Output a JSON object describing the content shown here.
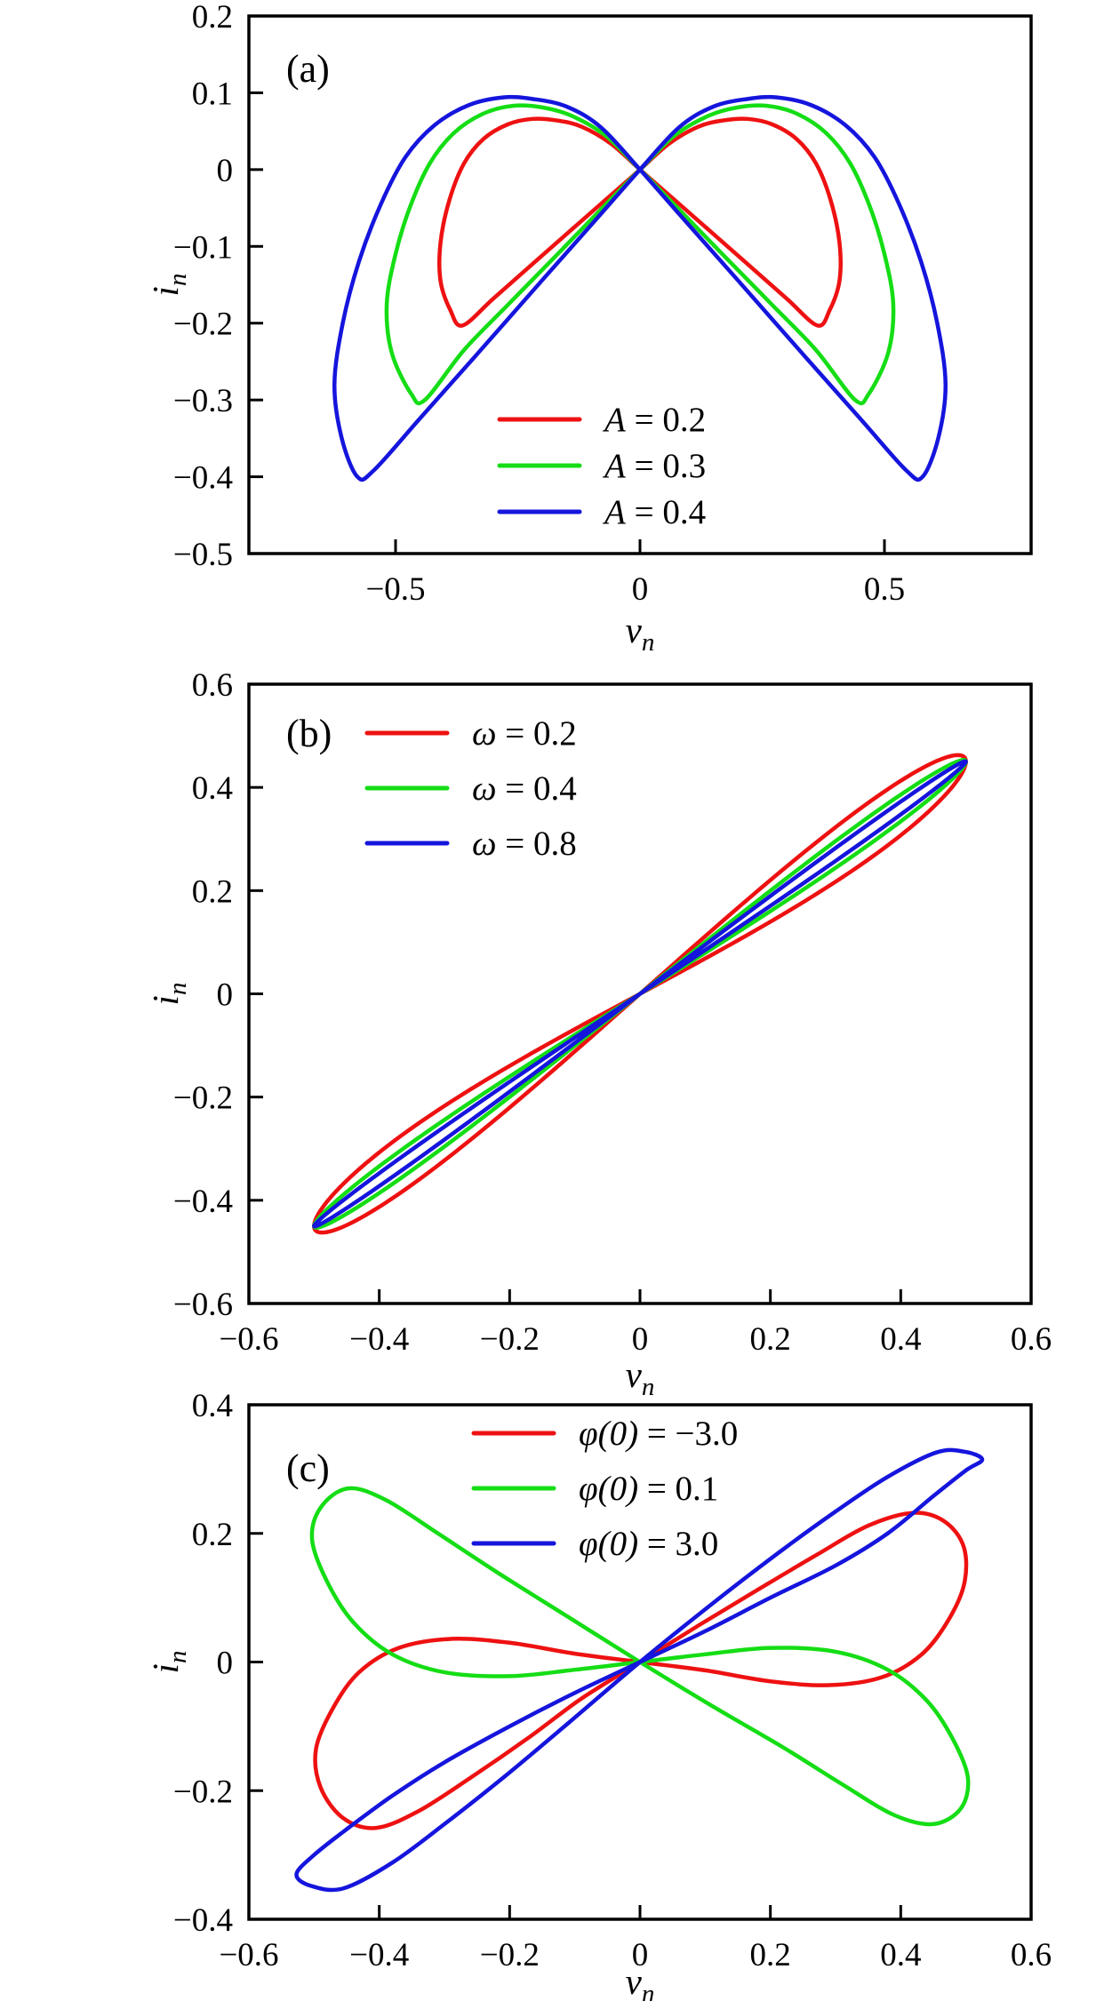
{
  "figure": {
    "background": "#ffffff",
    "frame_color": "#000000",
    "description": "Pinched hysteresis loops of i_n versus v_n, three stacked panels"
  },
  "chart_data": [
    {
      "type": "line",
      "tag": "(a)",
      "xlabel": {
        "base": "v",
        "sub": "n"
      },
      "ylabel": {
        "base": "i",
        "sub": "n"
      },
      "xlim": [
        -0.8,
        0.8
      ],
      "ylim": [
        -0.5,
        0.2
      ],
      "grid": false,
      "xticks": [
        {
          "v": -0.5,
          "label": "−0.5"
        },
        {
          "v": 0,
          "label": "0"
        },
        {
          "v": 0.5,
          "label": "0.5"
        }
      ],
      "yticks": [
        {
          "v": 0.2,
          "label": "0.2"
        },
        {
          "v": 0.1,
          "label": "0.1"
        },
        {
          "v": 0,
          "label": "0"
        },
        {
          "v": -0.1,
          "label": "−0.1"
        },
        {
          "v": -0.2,
          "label": "−0.2"
        },
        {
          "v": -0.3,
          "label": "−0.3"
        },
        {
          "v": -0.4,
          "label": "−0.4"
        },
        {
          "v": -0.5,
          "label": "−0.5"
        }
      ],
      "legend_position": "lower center",
      "legend": [
        {
          "math": "A",
          "rest": " = 0.2",
          "color": "#ee1111"
        },
        {
          "math": "A",
          "rest": " = 0.3",
          "color": "#15dd15"
        },
        {
          "math": "A",
          "rest": " = 0.4",
          "color": "#1515dd"
        }
      ],
      "series": [
        {
          "name": "A = 0.2",
          "color": "#ee1111",
          "geometry": "mirror-wing",
          "wing_points": [
            [
              0,
              0
            ],
            [
              0.06,
              0.034
            ],
            [
              0.12,
              0.056
            ],
            [
              0.17,
              0.064
            ],
            [
              0.22,
              0.066
            ],
            [
              0.27,
              0.059
            ],
            [
              0.32,
              0.04
            ],
            [
              0.36,
              0.008
            ],
            [
              0.39,
              -0.04
            ],
            [
              0.408,
              -0.095
            ],
            [
              0.408,
              -0.145
            ],
            [
              0.388,
              -0.183
            ],
            [
              0.363,
              -0.203
            ],
            [
              0.3,
              -0.168
            ],
            [
              0.22,
              -0.123
            ],
            [
              0.12,
              -0.067
            ],
            [
              0.05,
              -0.028
            ]
          ]
        },
        {
          "name": "A = 0.3",
          "color": "#15dd15",
          "geometry": "mirror-wing",
          "wing_points": [
            [
              0,
              0
            ],
            [
              0.07,
              0.044
            ],
            [
              0.14,
              0.07
            ],
            [
              0.2,
              0.081
            ],
            [
              0.26,
              0.083
            ],
            [
              0.32,
              0.073
            ],
            [
              0.38,
              0.048
            ],
            [
              0.43,
              0.008
            ],
            [
              0.47,
              -0.048
            ],
            [
              0.5,
              -0.11
            ],
            [
              0.518,
              -0.175
            ],
            [
              0.508,
              -0.238
            ],
            [
              0.468,
              -0.292
            ],
            [
              0.44,
              -0.3
            ],
            [
              0.36,
              -0.235
            ],
            [
              0.27,
              -0.176
            ],
            [
              0.17,
              -0.111
            ],
            [
              0.08,
              -0.052
            ]
          ]
        },
        {
          "name": "A = 0.4",
          "color": "#1515dd",
          "geometry": "mirror-wing",
          "wing_points": [
            [
              0,
              0
            ],
            [
              0.08,
              0.055
            ],
            [
              0.15,
              0.082
            ],
            [
              0.22,
              0.092
            ],
            [
              0.28,
              0.094
            ],
            [
              0.35,
              0.084
            ],
            [
              0.42,
              0.058
            ],
            [
              0.48,
              0.016
            ],
            [
              0.53,
              -0.045
            ],
            [
              0.575,
              -0.12
            ],
            [
              0.608,
              -0.2
            ],
            [
              0.625,
              -0.28
            ],
            [
              0.61,
              -0.35
            ],
            [
              0.578,
              -0.4
            ],
            [
              0.545,
              -0.392
            ],
            [
              0.45,
              -0.324
            ],
            [
              0.33,
              -0.238
            ],
            [
              0.2,
              -0.144
            ],
            [
              0.09,
              -0.065
            ]
          ]
        }
      ]
    },
    {
      "type": "line",
      "tag": "(b)",
      "xlabel": {
        "base": "v",
        "sub": "n"
      },
      "ylabel": {
        "base": "i",
        "sub": "n"
      },
      "xlim": [
        -0.6,
        0.6
      ],
      "ylim": [
        -0.6,
        0.6
      ],
      "grid": false,
      "xticks": [
        {
          "v": -0.6,
          "label": "−0.6"
        },
        {
          "v": -0.4,
          "label": "−0.4"
        },
        {
          "v": -0.2,
          "label": "−0.2"
        },
        {
          "v": 0,
          "label": "0"
        },
        {
          "v": 0.2,
          "label": "0.2"
        },
        {
          "v": 0.4,
          "label": "0.4"
        },
        {
          "v": 0.6,
          "label": "0.6"
        }
      ],
      "yticks": [
        {
          "v": 0.6,
          "label": "0.6"
        },
        {
          "v": 0.4,
          "label": "0.4"
        },
        {
          "v": 0.2,
          "label": "0.2"
        },
        {
          "v": 0,
          "label": "0"
        },
        {
          "v": -0.2,
          "label": "−0.2"
        },
        {
          "v": -0.4,
          "label": "−0.4"
        },
        {
          "v": -0.6,
          "label": "−0.6"
        }
      ],
      "legend_position": "upper left",
      "legend": [
        {
          "math": "ω",
          "rest": " = 0.2",
          "color": "#ee1111"
        },
        {
          "math": "ω",
          "rest": " = 0.4",
          "color": "#15dd15"
        },
        {
          "math": "ω",
          "rest": " = 0.8",
          "color": "#1515dd"
        }
      ],
      "series": [
        {
          "name": "ω = 0.2",
          "color": "#ee1111",
          "geometry": "lens",
          "amplitude": 0.5,
          "i_end": 0.45,
          "loop_width": 0.055
        },
        {
          "name": "ω = 0.4",
          "color": "#15dd15",
          "geometry": "lens",
          "amplitude": 0.5,
          "i_end": 0.45,
          "loop_width": 0.027
        },
        {
          "name": "ω = 0.8",
          "color": "#1515dd",
          "geometry": "lens",
          "amplitude": 0.5,
          "i_end": 0.45,
          "loop_width": 0.013
        }
      ]
    },
    {
      "type": "line",
      "tag": "(c)",
      "xlabel": {
        "base": "v",
        "sub": "n"
      },
      "ylabel": {
        "base": "i",
        "sub": "n"
      },
      "xlim": [
        -0.6,
        0.6
      ],
      "ylim": [
        -0.4,
        0.4
      ],
      "grid": false,
      "xticks": [
        {
          "v": -0.6,
          "label": "−0.6"
        },
        {
          "v": -0.4,
          "label": "−0.4"
        },
        {
          "v": -0.2,
          "label": "−0.2"
        },
        {
          "v": 0,
          "label": "0"
        },
        {
          "v": 0.2,
          "label": "0.2"
        },
        {
          "v": 0.4,
          "label": "0.4"
        },
        {
          "v": 0.6,
          "label": "0.6"
        }
      ],
      "yticks": [
        {
          "v": 0.4,
          "label": "0.4"
        },
        {
          "v": 0.2,
          "label": "0.2"
        },
        {
          "v": 0,
          "label": "0"
        },
        {
          "v": -0.2,
          "label": "−0.2"
        },
        {
          "v": -0.4,
          "label": "−0.4"
        }
      ],
      "legend_position": "upper center",
      "legend": [
        {
          "math": "φ(0)",
          "rest": " = −3.0",
          "color": "#ee1111"
        },
        {
          "math": "φ(0)",
          "rest": " = 0.1",
          "color": "#15dd15"
        },
        {
          "math": "φ(0)",
          "rest": " = 3.0",
          "color": "#1515dd"
        }
      ],
      "series": [
        {
          "name": "φ(0) = −3.0",
          "color": "#ee1111",
          "geometry": "loop",
          "points": [
            [
              0,
              0
            ],
            [
              0.1,
              -0.013
            ],
            [
              0.2,
              -0.03
            ],
            [
              0.29,
              -0.036
            ],
            [
              0.37,
              -0.024
            ],
            [
              0.43,
              0.01
            ],
            [
              0.47,
              0.06
            ],
            [
              0.497,
              0.12
            ],
            [
              0.497,
              0.178
            ],
            [
              0.468,
              0.218
            ],
            [
              0.42,
              0.232
            ],
            [
              0.35,
              0.212
            ],
            [
              0.27,
              0.166
            ],
            [
              0.18,
              0.112
            ],
            [
              0.09,
              0.057
            ],
            [
              0,
              0
            ],
            [
              -0.09,
              -0.057
            ],
            [
              -0.17,
              -0.117
            ],
            [
              -0.26,
              -0.18
            ],
            [
              -0.34,
              -0.232
            ],
            [
              -0.405,
              -0.258
            ],
            [
              -0.455,
              -0.243
            ],
            [
              -0.49,
              -0.195
            ],
            [
              -0.497,
              -0.135
            ],
            [
              -0.47,
              -0.07
            ],
            [
              -0.43,
              -0.015
            ],
            [
              -0.37,
              0.022
            ],
            [
              -0.29,
              0.036
            ],
            [
              -0.2,
              0.03
            ],
            [
              -0.1,
              0.013
            ]
          ]
        },
        {
          "name": "φ(0) = 0.1",
          "color": "#15dd15",
          "geometry": "loop",
          "points": [
            [
              0,
              0
            ],
            [
              -0.1,
              -0.012
            ],
            [
              -0.2,
              -0.022
            ],
            [
              -0.3,
              -0.016
            ],
            [
              -0.38,
              0.012
            ],
            [
              -0.44,
              0.062
            ],
            [
              -0.48,
              0.125
            ],
            [
              -0.503,
              0.19
            ],
            [
              -0.49,
              0.24
            ],
            [
              -0.448,
              0.27
            ],
            [
              -0.39,
              0.252
            ],
            [
              -0.31,
              0.2
            ],
            [
              -0.22,
              0.14
            ],
            [
              -0.11,
              0.07
            ],
            [
              0,
              0
            ],
            [
              0.11,
              -0.068
            ],
            [
              0.22,
              -0.133
            ],
            [
              0.31,
              -0.19
            ],
            [
              0.39,
              -0.238
            ],
            [
              0.45,
              -0.252
            ],
            [
              0.492,
              -0.228
            ],
            [
              0.503,
              -0.18
            ],
            [
              0.48,
              -0.12
            ],
            [
              0.44,
              -0.06
            ],
            [
              0.38,
              -0.012
            ],
            [
              0.3,
              0.016
            ],
            [
              0.2,
              0.022
            ],
            [
              0.1,
              0.012
            ]
          ]
        },
        {
          "name": "φ(0) = 3.0",
          "color": "#1515dd",
          "geometry": "loop",
          "points": [
            [
              0,
              0
            ],
            [
              0.1,
              0.048
            ],
            [
              0.2,
              0.1
            ],
            [
              0.3,
              0.15
            ],
            [
              0.38,
              0.2
            ],
            [
              0.45,
              0.258
            ],
            [
              0.5,
              0.298
            ],
            [
              0.525,
              0.315
            ],
            [
              0.498,
              0.327
            ],
            [
              0.455,
              0.326
            ],
            [
              0.38,
              0.288
            ],
            [
              0.3,
              0.234
            ],
            [
              0.21,
              0.168
            ],
            [
              0.11,
              0.09
            ],
            [
              0,
              0
            ],
            [
              -0.11,
              -0.095
            ],
            [
              -0.21,
              -0.18
            ],
            [
              -0.3,
              -0.252
            ],
            [
              -0.38,
              -0.312
            ],
            [
              -0.455,
              -0.352
            ],
            [
              -0.505,
              -0.348
            ],
            [
              -0.527,
              -0.33
            ],
            [
              -0.5,
              -0.3
            ],
            [
              -0.45,
              -0.26
            ],
            [
              -0.38,
              -0.208
            ],
            [
              -0.3,
              -0.156
            ],
            [
              -0.2,
              -0.1
            ],
            [
              -0.1,
              -0.048
            ]
          ]
        }
      ]
    }
  ]
}
